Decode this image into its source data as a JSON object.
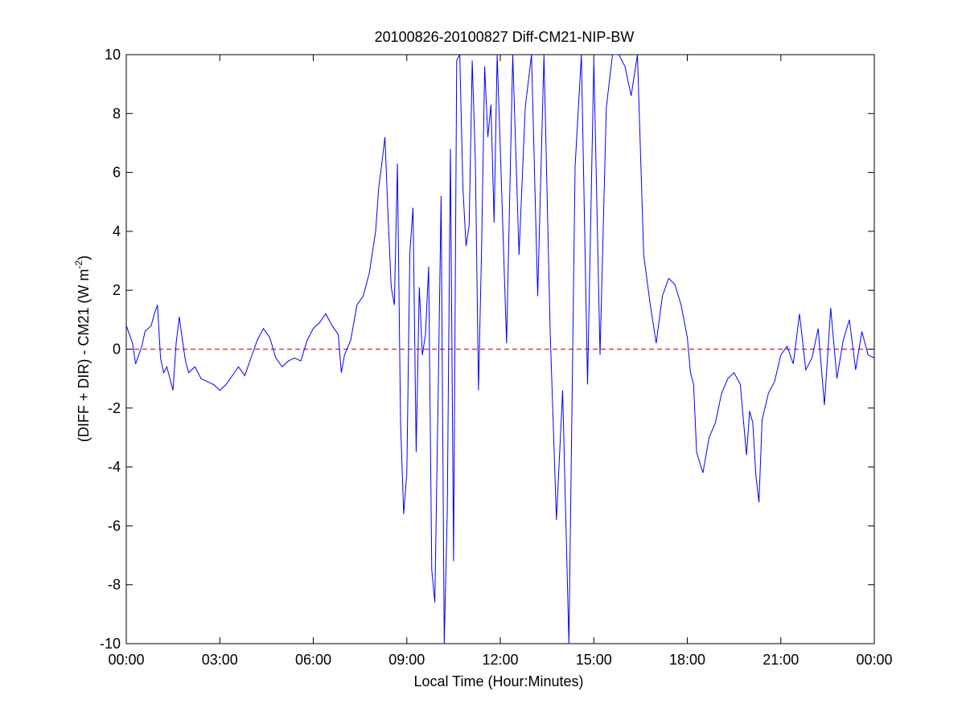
{
  "chart_data": {
    "type": "line",
    "title": "20100826-20100827 Diff-CM21-NIP-BW",
    "xlabel": "Local Time (Hour:Minutes)",
    "ylabel": "(DIFF + DIR) - CM21 (W m",
    "ylabel_sup": "-2",
    "ylabel_close": ")",
    "xlim": [
      0,
      24
    ],
    "ylim": [
      -10,
      10
    ],
    "x_ticks": [
      0,
      3,
      6,
      9,
      12,
      15,
      18,
      21,
      24
    ],
    "x_tick_labels": [
      "00:00",
      "03:00",
      "06:00",
      "09:00",
      "12:00",
      "15:00",
      "18:00",
      "21:00",
      "00:00"
    ],
    "y_ticks": [
      -10,
      -8,
      -6,
      -4,
      -2,
      0,
      2,
      4,
      6,
      8,
      10
    ],
    "y_tick_labels": [
      "-10",
      "-8",
      "-6",
      "-4",
      "-2",
      "0",
      "2",
      "4",
      "6",
      "8",
      "10"
    ],
    "grid": false,
    "colors": {
      "series": "#0000ff",
      "reference": "#cc0000",
      "axes": "#000000"
    },
    "reference_line": {
      "y": 0,
      "style": "dashed"
    },
    "series": [
      {
        "x_hours": [
          0.0,
          0.1,
          0.2,
          0.3,
          0.4,
          0.5,
          0.6,
          0.8,
          0.9,
          1.0,
          1.1,
          1.2,
          1.3,
          1.4,
          1.5,
          1.6,
          1.7,
          1.8,
          1.9,
          2.0,
          2.2,
          2.4,
          2.6,
          2.8,
          3.0,
          3.2,
          3.4,
          3.6,
          3.8,
          4.0,
          4.2,
          4.4,
          4.6,
          4.8,
          5.0,
          5.2,
          5.4,
          5.6,
          5.8,
          6.0,
          6.2,
          6.4,
          6.6,
          6.8,
          6.9,
          7.0,
          7.2,
          7.4,
          7.6,
          7.8,
          8.0,
          8.1,
          8.2,
          8.3,
          8.4,
          8.5,
          8.6,
          8.7,
          8.8,
          8.9,
          9.0,
          9.1,
          9.2,
          9.3,
          9.4,
          9.5,
          9.6,
          9.7,
          9.8,
          9.9,
          10.0,
          10.1,
          10.2,
          10.3,
          10.4,
          10.5,
          10.6,
          10.7,
          10.8,
          10.9,
          11.0,
          11.1,
          11.2,
          11.3,
          11.4,
          11.5,
          11.6,
          11.7,
          11.8,
          11.9,
          12.0,
          12.2,
          12.4,
          12.6,
          12.8,
          13.0,
          13.2,
          13.4,
          13.6,
          13.8,
          14.0,
          14.2,
          14.4,
          14.6,
          14.8,
          15.0,
          15.2,
          15.4,
          15.6,
          15.8,
          16.0,
          16.2,
          16.4,
          16.6,
          16.8,
          17.0,
          17.2,
          17.4,
          17.6,
          17.8,
          18.0,
          18.1,
          18.2,
          18.3,
          18.5,
          18.7,
          18.9,
          19.1,
          19.3,
          19.5,
          19.7,
          19.9,
          20.0,
          20.1,
          20.2,
          20.3,
          20.4,
          20.6,
          20.8,
          21.0,
          21.2,
          21.4,
          21.6,
          21.8,
          22.0,
          22.2,
          22.4,
          22.6,
          22.8,
          23.0,
          23.2,
          23.4,
          23.6,
          23.8,
          24.0
        ],
        "y_wm2": [
          0.8,
          0.5,
          0.2,
          -0.5,
          -0.2,
          0.1,
          0.6,
          0.8,
          1.2,
          1.5,
          -0.3,
          -0.8,
          -0.6,
          -1.0,
          -1.4,
          0.2,
          1.1,
          0.3,
          -0.4,
          -0.8,
          -0.6,
          -1.0,
          -1.1,
          -1.2,
          -1.4,
          -1.2,
          -0.9,
          -0.6,
          -0.9,
          -0.3,
          0.3,
          0.7,
          0.4,
          -0.3,
          -0.6,
          -0.4,
          -0.3,
          -0.4,
          0.3,
          0.7,
          0.9,
          1.2,
          0.8,
          0.5,
          -0.8,
          -0.2,
          0.3,
          1.5,
          1.8,
          2.6,
          4.0,
          5.5,
          6.3,
          7.2,
          4.5,
          2.1,
          1.5,
          6.3,
          -2.5,
          -5.6,
          -4.2,
          3.3,
          4.8,
          -3.5,
          2.1,
          -0.2,
          0.5,
          2.8,
          -7.5,
          -8.6,
          -2.0,
          5.2,
          -10.0,
          -5.5,
          6.8,
          -7.2,
          9.8,
          10.0,
          5.5,
          3.5,
          4.2,
          9.8,
          6.4,
          -1.4,
          3.5,
          9.6,
          7.2,
          8.3,
          4.3,
          10.0,
          6.8,
          0.2,
          10.0,
          3.2,
          8.2,
          10.0,
          1.8,
          10.0,
          0.6,
          -5.8,
          -1.4,
          -10.0,
          6.2,
          10.0,
          -1.2,
          9.8,
          -0.2,
          8.2,
          10.0,
          10.0,
          9.6,
          8.6,
          10.0,
          3.2,
          1.6,
          0.2,
          1.8,
          2.4,
          2.2,
          1.5,
          0.4,
          -0.8,
          -1.2,
          -3.5,
          -4.2,
          -3.0,
          -2.5,
          -1.5,
          -1.0,
          -0.8,
          -1.2,
          -3.6,
          -2.1,
          -2.5,
          -4.3,
          -5.2,
          -2.4,
          -1.5,
          -1.1,
          -0.2,
          0.1,
          -0.5,
          1.2,
          -0.7,
          -0.3,
          0.7,
          -1.9,
          1.4,
          -1.0,
          0.3,
          1.0,
          -0.7,
          0.6,
          -0.2,
          -0.3
        ]
      }
    ]
  }
}
